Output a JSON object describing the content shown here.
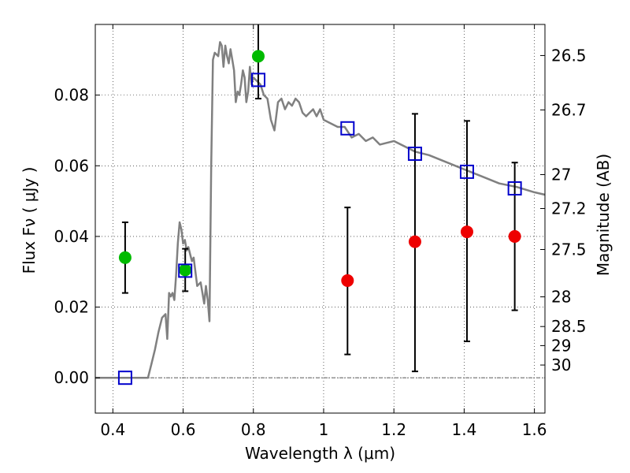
{
  "chart_data": {
    "type": "scatter",
    "xlabel": "Wavelength  λ (μm)",
    "ylabel": "Flux  Fν  ( μJy )",
    "ylabel_right": "Magnitude (AB)",
    "xlim": [
      0.35,
      1.63
    ],
    "ylim": [
      -0.01,
      0.1
    ],
    "x_ticks": [
      0.4,
      0.6,
      0.8,
      1.0,
      1.2,
      1.4,
      1.6
    ],
    "x_tick_labels": [
      "0.4",
      "0.6",
      "0.8",
      "1",
      "1.2",
      "1.4",
      "1.6"
    ],
    "y_ticks": [
      0.0,
      0.02,
      0.04,
      0.06,
      0.08
    ],
    "y_tick_labels": [
      "0.00",
      "0.02",
      "0.04",
      "0.06",
      "0.08"
    ],
    "right_ticks": [
      {
        "label": "26.5",
        "flux": 0.0912
      },
      {
        "label": "26.7",
        "flux": 0.0758
      },
      {
        "label": "27",
        "flux": 0.0575
      },
      {
        "label": "27.2",
        "flux": 0.0479
      },
      {
        "label": "27.5",
        "flux": 0.0363
      },
      {
        "label": "28",
        "flux": 0.0229
      },
      {
        "label": "28.5",
        "flux": 0.0145
      },
      {
        "label": "29",
        "flux": 0.0091
      },
      {
        "label": "30",
        "flux": 0.0036
      }
    ],
    "grid": true,
    "colors": {
      "model": "#808080",
      "detections": "#00bb00",
      "upper_limits": "#ee0000",
      "model_photometry": "#0000cc",
      "errorbars": "#000000"
    },
    "series": [
      {
        "kind": "line",
        "x": [
          0.35,
          0.5,
          0.51,
          0.52,
          0.53,
          0.54,
          0.55,
          0.555,
          0.56,
          0.565,
          0.57,
          0.575,
          0.58,
          0.585,
          0.59,
          0.595,
          0.6,
          0.605,
          0.61,
          0.615,
          0.62,
          0.625,
          0.63,
          0.64,
          0.65,
          0.66,
          0.665,
          0.67,
          0.675,
          0.68,
          0.685,
          0.69,
          0.7,
          0.705,
          0.71,
          0.715,
          0.72,
          0.725,
          0.73,
          0.735,
          0.74,
          0.745,
          0.75,
          0.755,
          0.76,
          0.765,
          0.77,
          0.775,
          0.78,
          0.785,
          0.79,
          0.795,
          0.8,
          0.81,
          0.82,
          0.83,
          0.84,
          0.85,
          0.86,
          0.87,
          0.88,
          0.89,
          0.9,
          0.91,
          0.92,
          0.93,
          0.94,
          0.95,
          0.96,
          0.97,
          0.98,
          0.99,
          1.0,
          1.02,
          1.04,
          1.06,
          1.08,
          1.1,
          1.12,
          1.14,
          1.16,
          1.2,
          1.26,
          1.3,
          1.35,
          1.4,
          1.45,
          1.5,
          1.55,
          1.6,
          1.63
        ],
        "y": [
          0.0,
          0.0,
          0.004,
          0.008,
          0.013,
          0.017,
          0.018,
          0.011,
          0.024,
          0.023,
          0.024,
          0.022,
          0.029,
          0.038,
          0.044,
          0.042,
          0.038,
          0.039,
          0.036,
          0.037,
          0.035,
          0.033,
          0.034,
          0.026,
          0.027,
          0.021,
          0.026,
          0.022,
          0.016,
          0.06,
          0.09,
          0.092,
          0.091,
          0.095,
          0.094,
          0.088,
          0.094,
          0.091,
          0.089,
          0.093,
          0.09,
          0.087,
          0.078,
          0.081,
          0.08,
          0.083,
          0.087,
          0.085,
          0.078,
          0.081,
          0.088,
          0.083,
          0.085,
          0.084,
          0.083,
          0.08,
          0.079,
          0.073,
          0.07,
          0.078,
          0.079,
          0.076,
          0.078,
          0.077,
          0.079,
          0.078,
          0.075,
          0.074,
          0.075,
          0.076,
          0.074,
          0.076,
          0.073,
          0.072,
          0.071,
          0.071,
          0.068,
          0.069,
          0.067,
          0.068,
          0.066,
          0.067,
          0.064,
          0.063,
          0.061,
          0.059,
          0.057,
          0.055,
          0.054,
          0.0525,
          0.0518
        ]
      },
      {
        "kind": "points",
        "marker": "circle",
        "x": [
          0.435,
          0.606,
          0.814
        ],
        "y": [
          0.034,
          0.0305,
          0.091
        ],
        "err": [
          0.01,
          0.006,
          0.012
        ]
      },
      {
        "kind": "points",
        "marker": "circle",
        "x": [
          1.068,
          1.26,
          1.408,
          1.544
        ],
        "y": [
          0.0275,
          0.0385,
          0.0413,
          0.04
        ],
        "err_low": [
          0.0066,
          0.0018,
          0.0103,
          0.0191
        ],
        "err_high": [
          0.0482,
          0.0747,
          0.0727,
          0.0609
        ]
      },
      {
        "kind": "points",
        "marker": "square",
        "x": [
          0.435,
          0.606,
          0.814,
          1.068,
          1.26,
          1.408,
          1.544
        ],
        "y": [
          0.0,
          0.0303,
          0.0843,
          0.0706,
          0.0634,
          0.0583,
          0.0536
        ]
      }
    ]
  }
}
